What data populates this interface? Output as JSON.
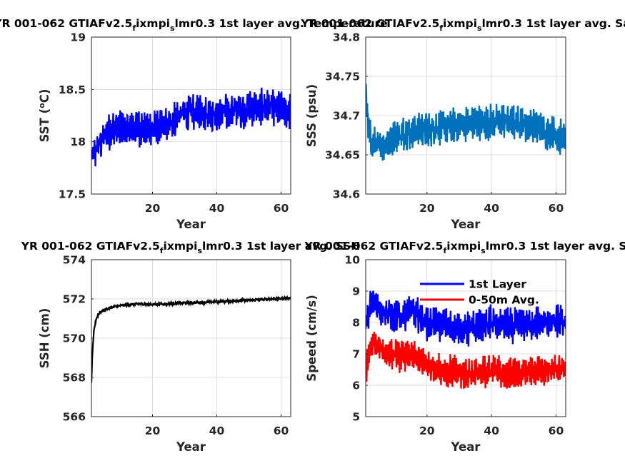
{
  "chart_data": [
    {
      "type": "line",
      "title": "YR 001-062 GTIAFv2.5",
      "title_sub": "f",
      "title_mid": "ixmpi",
      "title_sub2": "s",
      "title_end": "lmr0.3 1st layer avg. Temperature",
      "title_prefix_visible": "001-062",
      "xlabel": "Year",
      "ylabel_main": "SST (",
      "ylabel_sup": "o",
      "ylabel_end": "C)",
      "xlim": [
        1,
        63
      ],
      "ylim": [
        17.5,
        19
      ],
      "xticks": [
        "20",
        "40",
        "60"
      ],
      "yticks": [
        "17.5",
        "18",
        "18.5",
        "19"
      ],
      "grid": true,
      "series": [
        {
          "color": "#0000ff",
          "trend": [
            [
              1,
              17.85
            ],
            [
              2,
              17.9
            ],
            [
              3,
              17.95
            ],
            [
              5,
              18.05
            ],
            [
              8,
              18.12
            ],
            [
              12,
              18.12
            ],
            [
              16,
              18.13
            ],
            [
              20,
              18.12
            ],
            [
              25,
              18.15
            ],
            [
              28,
              18.25
            ],
            [
              32,
              18.3
            ],
            [
              36,
              18.28
            ],
            [
              40,
              18.25
            ],
            [
              44,
              18.3
            ],
            [
              48,
              18.3
            ],
            [
              52,
              18.33
            ],
            [
              56,
              18.33
            ],
            [
              60,
              18.3
            ],
            [
              63,
              18.28
            ]
          ],
          "amplitude": 0.17
        }
      ]
    },
    {
      "type": "line",
      "title": "YR 001-062 GTIAFv2.5",
      "title_sub": "f",
      "title_mid": "ixmpi",
      "title_sub2": "s",
      "title_end": "lmr0.3 1st layer avg. Sa",
      "xlabel": "Year",
      "ylabel": "SSS (psu)",
      "xlim": [
        1,
        63
      ],
      "ylim": [
        34.6,
        34.8
      ],
      "xticks": [
        "20",
        "40",
        "60"
      ],
      "yticks": [
        "34.6",
        "34.65",
        "34.7",
        "34.75",
        "34.8"
      ],
      "grid": true,
      "series": [
        {
          "color": "#0072bd",
          "trend": [
            [
              1,
              34.74
            ],
            [
              1.5,
              34.7
            ],
            [
              2,
              34.68
            ],
            [
              3,
              34.665
            ],
            [
              5,
              34.66
            ],
            [
              10,
              34.672
            ],
            [
              15,
              34.68
            ],
            [
              20,
              34.683
            ],
            [
              25,
              34.686
            ],
            [
              30,
              34.688
            ],
            [
              35,
              34.69
            ],
            [
              40,
              34.692
            ],
            [
              45,
              34.693
            ],
            [
              50,
              34.69
            ],
            [
              55,
              34.683
            ],
            [
              60,
              34.675
            ],
            [
              63,
              34.67
            ]
          ],
          "amplitude": 0.022
        }
      ]
    },
    {
      "type": "line",
      "title": "YR 001-062 GTIAFv2.5",
      "title_sub": "f",
      "title_mid": "ixmpi",
      "title_sub2": "s",
      "title_end": "lmr0.3 1st layer avg. SSH",
      "xlabel": "Year",
      "ylabel": "SSH (cm)",
      "xlim": [
        1,
        63
      ],
      "ylim": [
        566,
        574
      ],
      "xticks": [
        "20",
        "40",
        "60"
      ],
      "yticks": [
        "566",
        "568",
        "570",
        "572",
        "574"
      ],
      "grid": true,
      "series": [
        {
          "color": "#000000",
          "trend": [
            [
              1,
              567.7
            ],
            [
              1.3,
              569.2
            ],
            [
              1.8,
              570.4
            ],
            [
              2.5,
              571.0
            ],
            [
              3.5,
              571.3
            ],
            [
              5,
              571.45
            ],
            [
              8,
              571.6
            ],
            [
              12,
              571.7
            ],
            [
              16,
              571.75
            ],
            [
              20,
              571.72
            ],
            [
              25,
              571.75
            ],
            [
              30,
              571.8
            ],
            [
              35,
              571.82
            ],
            [
              40,
              571.85
            ],
            [
              45,
              571.9
            ],
            [
              50,
              571.93
            ],
            [
              55,
              571.98
            ],
            [
              60,
              572.02
            ],
            [
              63,
              572.05
            ]
          ],
          "amplitude": 0.06
        }
      ]
    },
    {
      "type": "line",
      "title": "YR 001-062 GTIAFv2.5",
      "title_sub": "f",
      "title_mid": "ixmpi",
      "title_sub2": "s",
      "title_end": "lmr0.3 1st layer avg. S",
      "xlabel": "Year",
      "ylabel": "Speed (cm/s)",
      "xlim": [
        1,
        63
      ],
      "ylim": [
        5,
        10
      ],
      "xticks": [
        "20",
        "40",
        "60"
      ],
      "yticks": [
        "5",
        "6",
        "7",
        "8",
        "9",
        "10"
      ],
      "grid": true,
      "legend_position": "top-right",
      "series": [
        {
          "name": "1st Layer",
          "color": "#0000ff",
          "trend": [
            [
              1,
              7.8
            ],
            [
              2,
              8.3
            ],
            [
              3,
              8.7
            ],
            [
              5,
              8.5
            ],
            [
              8,
              8.3
            ],
            [
              12,
              8.2
            ],
            [
              15,
              8.4
            ],
            [
              20,
              8.0
            ],
            [
              25,
              7.9
            ],
            [
              30,
              7.8
            ],
            [
              35,
              7.8
            ],
            [
              40,
              8.0
            ],
            [
              45,
              7.9
            ],
            [
              50,
              7.9
            ],
            [
              55,
              8.0
            ],
            [
              60,
              8.0
            ],
            [
              63,
              8.05
            ]
          ],
          "amplitude": 0.55
        },
        {
          "name": "0-50m Avg.",
          "color": "#ff0000",
          "trend": [
            [
              1,
              6.3
            ],
            [
              2,
              7.0
            ],
            [
              3,
              7.3
            ],
            [
              5,
              7.2
            ],
            [
              8,
              7.0
            ],
            [
              12,
              6.9
            ],
            [
              15,
              7.0
            ],
            [
              20,
              6.6
            ],
            [
              25,
              6.5
            ],
            [
              30,
              6.4
            ],
            [
              35,
              6.35
            ],
            [
              40,
              6.5
            ],
            [
              45,
              6.4
            ],
            [
              50,
              6.4
            ],
            [
              55,
              6.5
            ],
            [
              60,
              6.5
            ],
            [
              63,
              6.55
            ]
          ],
          "amplitude": 0.5
        }
      ]
    }
  ]
}
